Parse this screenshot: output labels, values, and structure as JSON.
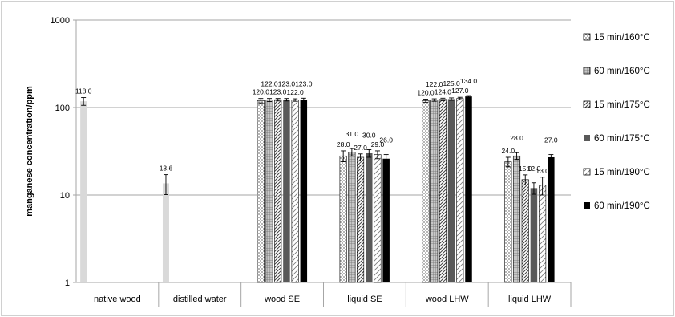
{
  "chart_data": {
    "type": "bar",
    "ylabel": "manganese concentration/ppm",
    "yscale": "log",
    "ylim": [
      1,
      1000
    ],
    "yticks": [
      "1",
      "10",
      "100",
      "1000"
    ],
    "grid": true,
    "legend_position": "right",
    "categories": [
      "native wood",
      "distilled water",
      "wood SE",
      "liquid SE",
      "wood LHW",
      "liquid LHW"
    ],
    "reference_series": [
      {
        "category": "native wood",
        "value": 118.0,
        "label": "118.0",
        "error": 12,
        "color": "#d9d9d9"
      },
      {
        "category": "distilled water",
        "value": 13.6,
        "label": "13.6",
        "error": 3.5,
        "color": "#d9d9d9"
      }
    ],
    "series": [
      {
        "name": "15 min/160°C",
        "pattern": "dots",
        "values": [
          null,
          null,
          120.0,
          28.0,
          120.0,
          24.0
        ],
        "labels": [
          "",
          "",
          "120.0",
          "28.0",
          "120.0",
          "24.0"
        ],
        "errors": [
          null,
          null,
          7,
          4,
          5,
          3
        ]
      },
      {
        "name": "60 min/160°C",
        "pattern": "grid",
        "values": [
          null,
          null,
          122.0,
          31.0,
          122.0,
          28.0
        ],
        "labels": [
          "",
          "",
          "122.0",
          "31.0",
          "122.0",
          "28.0"
        ],
        "errors": [
          null,
          null,
          5,
          3,
          4,
          2.5
        ]
      },
      {
        "name": "15 min/175°C",
        "pattern": "diagonal",
        "values": [
          null,
          null,
          123.0,
          27.0,
          124.0,
          15.0
        ],
        "labels": [
          "",
          "",
          "123.0",
          "27.0",
          "124.0",
          "15.0"
        ],
        "errors": [
          null,
          null,
          4,
          2.5,
          4,
          2
        ]
      },
      {
        "name": "60 min/175°C",
        "pattern": "solid-gray",
        "values": [
          null,
          null,
          123.0,
          30.0,
          125.0,
          12.0
        ],
        "labels": [
          "",
          "",
          "123.0",
          "30.0",
          "125.0",
          "12.0"
        ],
        "errors": [
          null,
          null,
          4,
          3,
          4,
          1.8
        ]
      },
      {
        "name": "15 min/190°C",
        "pattern": "diagonal-light",
        "values": [
          null,
          null,
          122.0,
          29.0,
          127.0,
          13.0
        ],
        "labels": [
          "",
          "",
          "122.0",
          "29.0",
          "127.0",
          "13.0"
        ],
        "errors": [
          null,
          null,
          4,
          3,
          4,
          3
        ]
      },
      {
        "name": "60 min/190°C",
        "pattern": "solid-black",
        "values": [
          null,
          null,
          123.0,
          26.0,
          134.0,
          27.0
        ],
        "labels": [
          "",
          "",
          "123.0",
          "26.0",
          "134.0",
          "27.0"
        ],
        "errors": [
          null,
          null,
          5,
          3,
          3,
          2
        ]
      }
    ]
  }
}
